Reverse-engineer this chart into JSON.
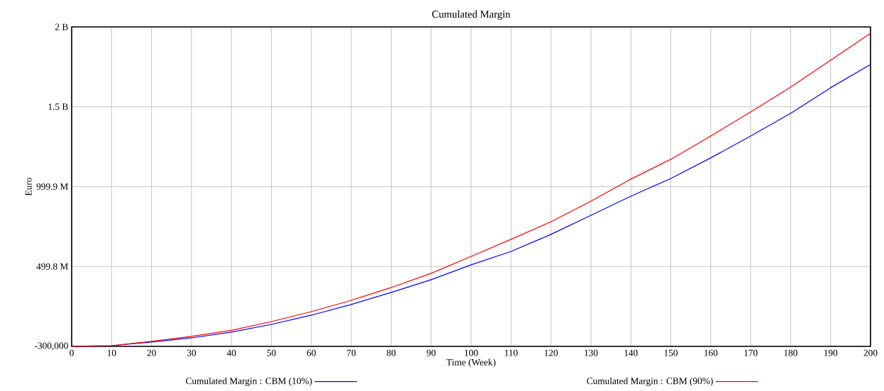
{
  "chart_data": {
    "type": "line",
    "title": "Cumulated Margin",
    "xlabel": "Time (Week)",
    "ylabel": "Euro",
    "x": [
      0,
      10,
      20,
      30,
      40,
      50,
      60,
      70,
      80,
      90,
      100,
      110,
      120,
      130,
      140,
      150,
      160,
      170,
      180,
      190,
      200
    ],
    "series": [
      {
        "name": "Cumulated Margin : CBM (10%)",
        "color": "#0000ff",
        "values": [
          0,
          4000000,
          27000000,
          53000000,
          89000000,
          137000000,
          195000000,
          262000000,
          337000000,
          417000000,
          510000000,
          594000000,
          701000000,
          820000000,
          940000000,
          1051000000,
          1180000000,
          1317000000,
          1459000000,
          1619000000,
          1765000000
        ]
      },
      {
        "name": "Cumulated Margin : CBM (90%)",
        "color": "#ff0000",
        "values": [
          0,
          4000000,
          31000000,
          62000000,
          100000000,
          155000000,
          217000000,
          288000000,
          368000000,
          457000000,
          563000000,
          670000000,
          780000000,
          909000000,
          1047000000,
          1171000000,
          1317000000,
          1468000000,
          1623000000,
          1792000000,
          1960000000
        ]
      }
    ],
    "xlim": [
      0,
      200
    ],
    "xticks": [
      0,
      10,
      20,
      30,
      40,
      50,
      60,
      70,
      80,
      90,
      100,
      110,
      120,
      130,
      140,
      150,
      160,
      170,
      180,
      190,
      200
    ],
    "ylim": [
      -300000,
      2000000000
    ],
    "yticks": [
      {
        "value": -300000,
        "label": "-300,000"
      },
      {
        "value": 499800000,
        "label": "499.8 M"
      },
      {
        "value": 999900000,
        "label": "999.9 M"
      },
      {
        "value": 1500000000,
        "label": "1.5 B"
      },
      {
        "value": 2000000000,
        "label": "2 B"
      }
    ],
    "grid": true,
    "legend": "bottom",
    "marker": "none",
    "line_style": "solid"
  }
}
